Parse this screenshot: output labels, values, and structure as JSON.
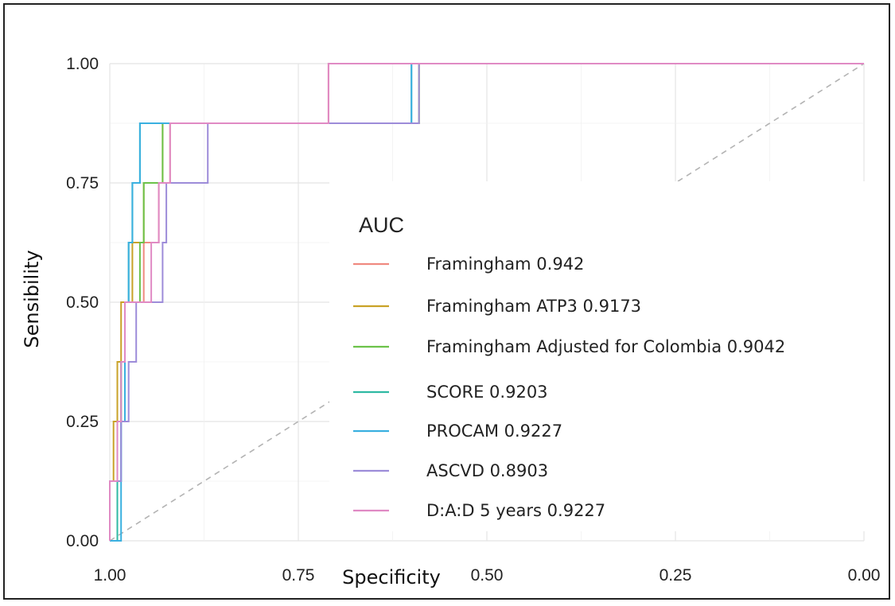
{
  "chart_data": {
    "type": "line",
    "title": "",
    "xlabel": "Specificity",
    "ylabel": "Sensibility",
    "x_reversed": true,
    "xlim": [
      1.0,
      0.0
    ],
    "ylim": [
      0.0,
      1.0
    ],
    "x_ticks": [
      "1.00",
      "0.75",
      "0.50",
      "0.25",
      "0.00"
    ],
    "y_ticks": [
      "0.00",
      "0.25",
      "0.50",
      "0.75",
      "1.00"
    ],
    "grid": true,
    "legend_title": "AUC",
    "legend_position": "center-right",
    "reference_line": {
      "from": [
        1.0,
        0.0
      ],
      "to": [
        0.0,
        1.0
      ],
      "style": "dashed",
      "color": "#b3b3b3"
    },
    "series": [
      {
        "name": "Framingham 0.942",
        "color": "#F08A80",
        "specificity": [
          1.0,
          1.0,
          0.99,
          0.99,
          0.985,
          0.985,
          0.98,
          0.98,
          0.97,
          0.97,
          0.955,
          0.955,
          0.935,
          0.935,
          0.92,
          0.92,
          0.83,
          0.83,
          0.71,
          0.71,
          0.0
        ],
        "sensitivity": [
          0.0,
          0.125,
          0.125,
          0.25,
          0.25,
          0.375,
          0.375,
          0.5,
          0.5,
          0.5,
          0.5,
          0.625,
          0.625,
          0.75,
          0.75,
          0.875,
          0.875,
          0.875,
          0.875,
          1.0,
          1.0
        ]
      },
      {
        "name": "Framingham ATP3 0.9173",
        "color": "#C9A227",
        "specificity": [
          1.0,
          1.0,
          0.995,
          0.995,
          0.99,
          0.99,
          0.985,
          0.985,
          0.97,
          0.97,
          0.955,
          0.955,
          0.93,
          0.93,
          0.925,
          0.925,
          0.59,
          0.59,
          0.0
        ],
        "sensitivity": [
          0.0,
          0.125,
          0.125,
          0.25,
          0.25,
          0.375,
          0.375,
          0.5,
          0.5,
          0.625,
          0.625,
          0.75,
          0.75,
          0.875,
          0.875,
          0.875,
          0.875,
          1.0,
          1.0
        ]
      },
      {
        "name": "Framingham Adjusted for Colombia 0.9042",
        "color": "#6CC24A",
        "specificity": [
          1.0,
          1.0,
          0.99,
          0.99,
          0.985,
          0.985,
          0.98,
          0.98,
          0.96,
          0.96,
          0.955,
          0.955,
          0.93,
          0.93,
          0.925,
          0.925,
          0.59,
          0.59,
          0.0
        ],
        "sensitivity": [
          0.0,
          0.125,
          0.125,
          0.25,
          0.25,
          0.375,
          0.375,
          0.5,
          0.5,
          0.625,
          0.625,
          0.75,
          0.75,
          0.875,
          0.875,
          0.875,
          0.875,
          1.0,
          1.0
        ]
      },
      {
        "name": "SCORE 0.9203",
        "color": "#2FB9A3",
        "specificity": [
          1.0,
          0.99,
          0.99,
          0.985,
          0.985,
          0.98,
          0.98,
          0.975,
          0.975,
          0.97,
          0.97,
          0.96,
          0.96,
          0.6,
          0.6,
          0.0
        ],
        "sensitivity": [
          0.0,
          0.0,
          0.125,
          0.125,
          0.375,
          0.375,
          0.5,
          0.5,
          0.625,
          0.625,
          0.75,
          0.75,
          0.875,
          0.875,
          1.0,
          1.0
        ]
      },
      {
        "name": "PROCAM 0.9227",
        "color": "#3AB0E0",
        "specificity": [
          1.0,
          0.985,
          0.985,
          0.98,
          0.98,
          0.975,
          0.975,
          0.97,
          0.97,
          0.96,
          0.96,
          0.6,
          0.6,
          0.0
        ],
        "sensitivity": [
          0.0,
          0.0,
          0.25,
          0.25,
          0.5,
          0.5,
          0.625,
          0.625,
          0.75,
          0.75,
          0.875,
          0.875,
          1.0,
          1.0
        ]
      },
      {
        "name": "ASCVD 0.8903",
        "color": "#9D8CD9",
        "specificity": [
          1.0,
          1.0,
          0.985,
          0.985,
          0.975,
          0.975,
          0.965,
          0.965,
          0.93,
          0.93,
          0.925,
          0.925,
          0.92,
          0.92,
          0.87,
          0.87,
          0.83,
          0.83,
          0.59,
          0.59,
          0.0
        ],
        "sensitivity": [
          0.0,
          0.125,
          0.125,
          0.25,
          0.25,
          0.375,
          0.375,
          0.5,
          0.5,
          0.625,
          0.625,
          0.75,
          0.75,
          0.75,
          0.75,
          0.875,
          0.875,
          0.875,
          0.875,
          1.0,
          1.0
        ]
      },
      {
        "name": "D:A:D 5 years 0.9227",
        "color": "#E08AC4",
        "specificity": [
          1.0,
          1.0,
          0.99,
          0.99,
          0.985,
          0.985,
          0.98,
          0.98,
          0.97,
          0.97,
          0.945,
          0.945,
          0.935,
          0.935,
          0.92,
          0.92,
          0.71,
          0.71,
          0.0
        ],
        "sensitivity": [
          0.0,
          0.125,
          0.125,
          0.25,
          0.25,
          0.375,
          0.375,
          0.5,
          0.5,
          0.5,
          0.5,
          0.625,
          0.625,
          0.75,
          0.75,
          0.875,
          0.875,
          1.0,
          1.0
        ]
      }
    ]
  }
}
